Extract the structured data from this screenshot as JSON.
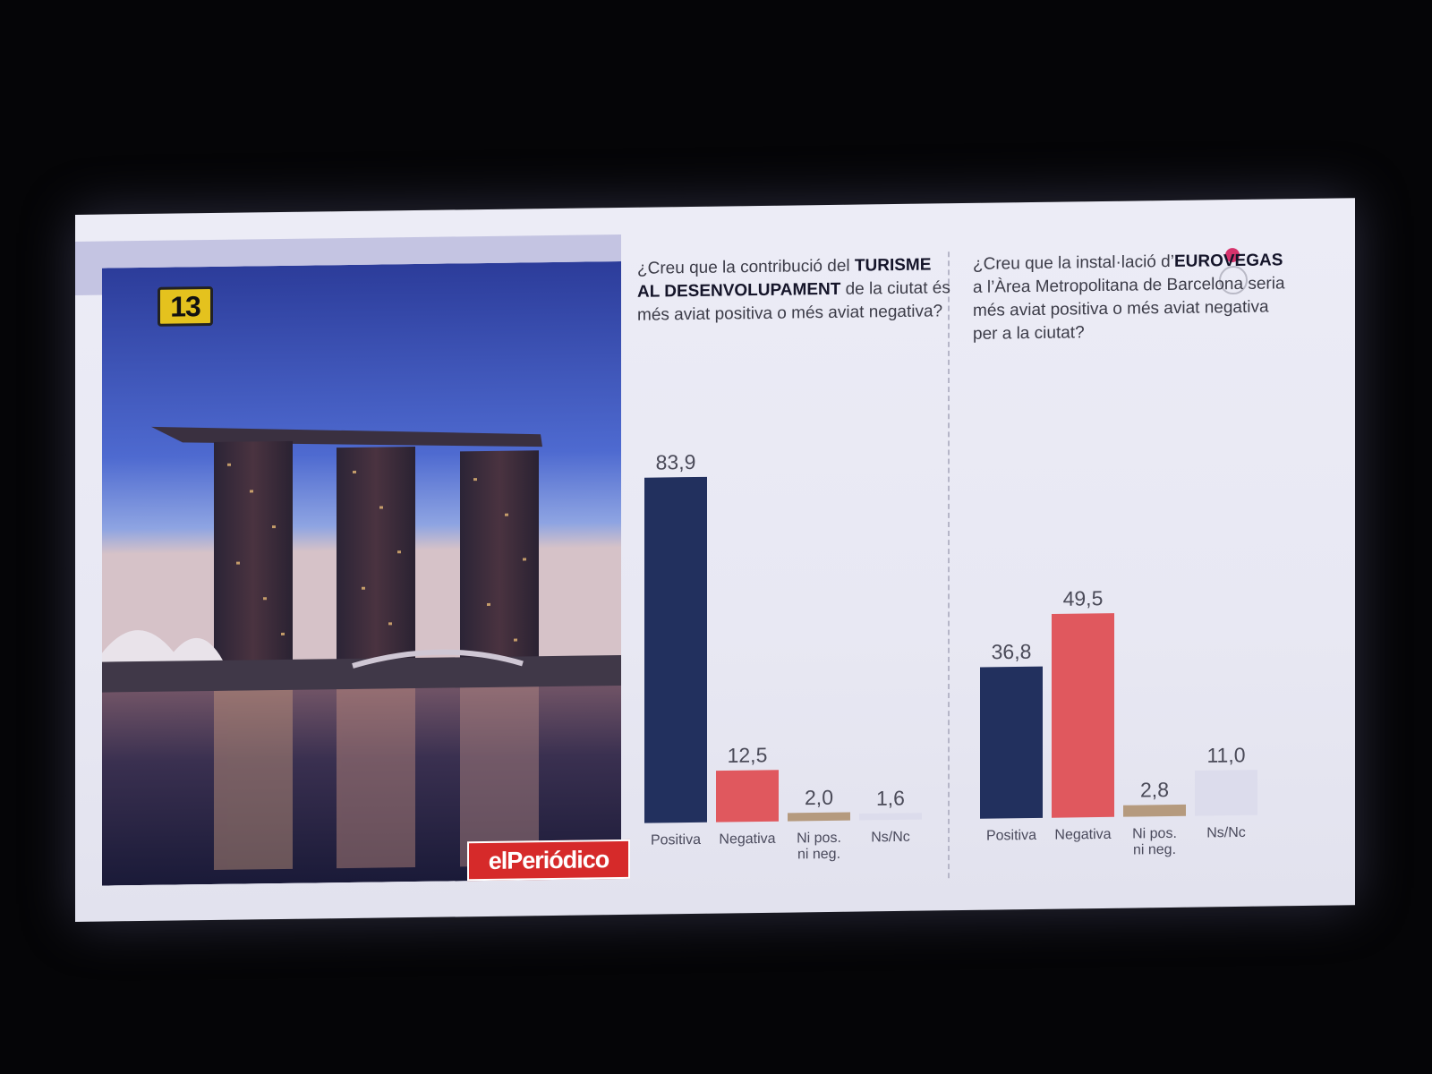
{
  "badge": "13",
  "logo": "elPeriódico",
  "colors": {
    "positiva": "#22305e",
    "negativa": "#e0585e",
    "ni": "#b59a7e",
    "nsnc": "#dcdcec"
  },
  "photo": {
    "subject": "skyline-photo"
  },
  "chart_data": [
    {
      "type": "bar",
      "question": {
        "pre": "¿Creu que la contribució del ",
        "bold": "TURISME AL DESENVOLUPAMENT",
        "post": " de la ciutat és més aviat positiva o més aviat negativa?"
      },
      "categories": [
        "Positiva",
        "Negativa",
        "Ni pos. ni neg.",
        "Ns/Nc"
      ],
      "values": [
        83.9,
        12.5,
        2.0,
        1.6
      ],
      "value_labels": [
        "83,9",
        "12,5",
        "2,0",
        "1,6"
      ],
      "ylim": [
        0,
        100
      ]
    },
    {
      "type": "bar",
      "question": {
        "pre": "¿Creu que la instal·lació d’",
        "bold": "EUROVEGAS",
        "post": " a l’Àrea Metropolitana de Barcelona seria més aviat positiva o més aviat negativa per a la ciutat?"
      },
      "categories": [
        "Positiva",
        "Negativa",
        "Ni pos. ni neg.",
        "Ns/Nc"
      ],
      "values": [
        36.8,
        49.5,
        2.8,
        11.0
      ],
      "value_labels": [
        "36,8",
        "49,5",
        "2,8",
        "11,0"
      ],
      "ylim": [
        0,
        100
      ]
    }
  ]
}
